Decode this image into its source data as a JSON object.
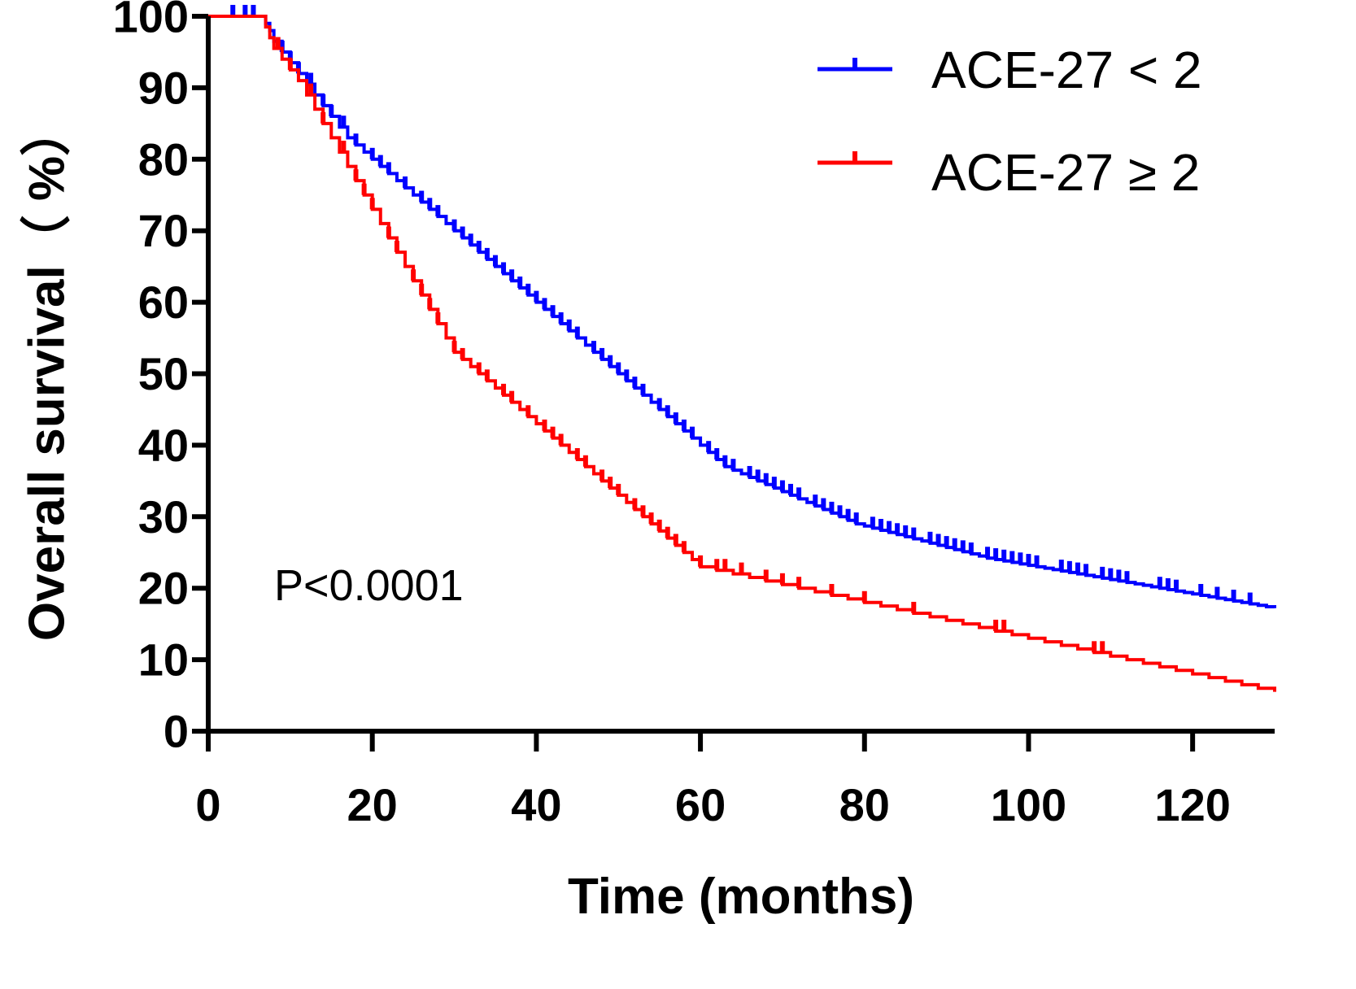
{
  "chart_data": {
    "type": "line",
    "subtype": "kaplan-meier",
    "title": "",
    "xlabel": "Time (months)",
    "ylabel": "Overall survival（ %）",
    "xlim": [
      0,
      130
    ],
    "ylim": [
      0,
      100
    ],
    "xticks": [
      0,
      20,
      40,
      60,
      80,
      100,
      120
    ],
    "yticks": [
      0,
      10,
      20,
      30,
      40,
      50,
      60,
      70,
      80,
      90,
      100
    ],
    "grid": false,
    "legend_position": "top-right",
    "annotation": "P<0.0001",
    "series": [
      {
        "name": "ACE-27 < 2",
        "color": "#0000ff",
        "steps": [
          [
            0,
            100
          ],
          [
            7,
            99
          ],
          [
            7.5,
            98
          ],
          [
            8,
            96.5
          ],
          [
            9,
            95
          ],
          [
            10,
            93.5
          ],
          [
            11,
            92
          ],
          [
            12,
            90.5
          ],
          [
            13,
            89
          ],
          [
            14,
            87.5
          ],
          [
            15,
            86
          ],
          [
            16,
            84.5
          ],
          [
            17,
            83
          ],
          [
            18,
            82
          ],
          [
            19,
            81
          ],
          [
            20,
            80
          ],
          [
            21,
            79
          ],
          [
            22,
            78
          ],
          [
            23,
            77
          ],
          [
            24,
            76
          ],
          [
            25,
            75
          ],
          [
            26,
            74
          ],
          [
            27,
            73
          ],
          [
            28,
            72
          ],
          [
            29,
            71
          ],
          [
            30,
            70
          ],
          [
            31,
            69
          ],
          [
            32,
            68
          ],
          [
            33,
            67
          ],
          [
            34,
            66
          ],
          [
            35,
            65
          ],
          [
            36,
            64
          ],
          [
            37,
            63
          ],
          [
            38,
            62
          ],
          [
            39,
            61
          ],
          [
            40,
            60
          ],
          [
            41,
            59
          ],
          [
            42,
            58
          ],
          [
            43,
            57
          ],
          [
            44,
            56
          ],
          [
            45,
            55
          ],
          [
            46,
            54
          ],
          [
            47,
            53
          ],
          [
            48,
            52
          ],
          [
            49,
            51
          ],
          [
            50,
            50
          ],
          [
            51,
            49
          ],
          [
            52,
            48
          ],
          [
            53,
            47
          ],
          [
            54,
            46
          ],
          [
            55,
            45
          ],
          [
            56,
            44
          ],
          [
            57,
            43
          ],
          [
            58,
            42
          ],
          [
            59,
            41
          ],
          [
            60,
            40
          ],
          [
            61,
            39
          ],
          [
            62,
            38
          ],
          [
            63,
            37
          ],
          [
            64,
            36.5
          ],
          [
            65,
            36
          ],
          [
            66,
            35.5
          ],
          [
            67,
            35
          ],
          [
            68,
            34.5
          ],
          [
            69,
            34
          ],
          [
            70,
            33.5
          ],
          [
            71,
            33
          ],
          [
            72,
            32.5
          ],
          [
            73,
            32
          ],
          [
            74,
            31.5
          ],
          [
            75,
            31
          ],
          [
            76,
            30.5
          ],
          [
            77,
            30
          ],
          [
            78,
            29.5
          ],
          [
            79,
            29
          ],
          [
            80,
            28.7
          ],
          [
            81,
            28.4
          ],
          [
            82,
            28.1
          ],
          [
            83,
            27.8
          ],
          [
            84,
            27.5
          ],
          [
            85,
            27.2
          ],
          [
            86,
            26.9
          ],
          [
            87,
            26.6
          ],
          [
            88,
            26.3
          ],
          [
            89,
            26
          ],
          [
            90,
            25.7
          ],
          [
            91,
            25.4
          ],
          [
            92,
            25.1
          ],
          [
            93,
            24.8
          ],
          [
            94,
            24.5
          ],
          [
            95,
            24.2
          ],
          [
            96,
            24
          ],
          [
            97,
            23.8
          ],
          [
            98,
            23.6
          ],
          [
            99,
            23.4
          ],
          [
            100,
            23.2
          ],
          [
            101,
            23
          ],
          [
            102,
            22.8
          ],
          [
            103,
            22.6
          ],
          [
            104,
            22.4
          ],
          [
            105,
            22.2
          ],
          [
            106,
            22
          ],
          [
            107,
            21.8
          ],
          [
            108,
            21.6
          ],
          [
            109,
            21.4
          ],
          [
            110,
            21.2
          ],
          [
            111,
            21
          ],
          [
            112,
            20.8
          ],
          [
            113,
            20.6
          ],
          [
            114,
            20.4
          ],
          [
            115,
            20.2
          ],
          [
            116,
            20
          ],
          [
            117,
            19.8
          ],
          [
            118,
            19.6
          ],
          [
            119,
            19.4
          ],
          [
            120,
            19.2
          ],
          [
            121,
            19
          ],
          [
            122,
            18.8
          ],
          [
            123,
            18.6
          ],
          [
            124,
            18.4
          ],
          [
            125,
            18.2
          ],
          [
            126,
            18
          ],
          [
            127,
            17.8
          ],
          [
            128,
            17.6
          ],
          [
            129,
            17.4
          ],
          [
            130,
            17.2
          ]
        ],
        "censored_x": [
          3,
          4.5,
          5.5,
          9,
          10,
          11,
          12.5,
          14,
          15,
          16.5,
          18,
          20,
          21,
          22,
          24,
          26,
          27,
          28,
          30,
          31,
          32,
          33,
          34,
          35,
          36,
          37,
          38,
          39,
          40,
          41,
          42,
          43,
          44,
          45,
          47,
          48,
          49,
          50,
          51,
          52,
          53,
          55,
          56,
          57,
          58,
          59,
          61,
          62,
          63,
          64,
          66,
          67,
          68,
          69,
          70,
          71,
          72,
          74,
          75,
          76,
          77,
          78,
          79,
          81,
          82,
          83,
          84,
          85,
          86,
          88,
          89,
          90,
          91,
          92,
          93,
          95,
          96,
          97,
          98,
          99,
          100,
          101,
          104,
          105,
          106,
          107,
          109,
          110,
          111,
          112,
          116,
          117,
          118,
          121,
          123,
          125,
          127
        ]
      },
      {
        "name": "ACE-27 ≥ 2",
        "color": "#ff0000",
        "steps": [
          [
            0,
            100
          ],
          [
            7,
            98.5
          ],
          [
            7.5,
            97
          ],
          [
            8,
            95.5
          ],
          [
            9,
            94
          ],
          [
            10,
            92.5
          ],
          [
            11,
            91
          ],
          [
            12,
            89
          ],
          [
            13,
            87
          ],
          [
            14,
            85
          ],
          [
            15,
            83
          ],
          [
            16,
            81
          ],
          [
            17,
            79
          ],
          [
            18,
            77
          ],
          [
            19,
            75
          ],
          [
            20,
            73
          ],
          [
            21,
            71
          ],
          [
            22,
            69
          ],
          [
            23,
            67
          ],
          [
            24,
            65
          ],
          [
            25,
            63
          ],
          [
            26,
            61
          ],
          [
            27,
            59
          ],
          [
            28,
            57
          ],
          [
            29,
            55
          ],
          [
            30,
            53
          ],
          [
            31,
            52
          ],
          [
            32,
            51
          ],
          [
            33,
            50
          ],
          [
            34,
            49
          ],
          [
            35,
            48
          ],
          [
            36,
            47
          ],
          [
            37,
            46
          ],
          [
            38,
            45
          ],
          [
            39,
            44
          ],
          [
            40,
            43
          ],
          [
            41,
            42
          ],
          [
            42,
            41
          ],
          [
            43,
            40
          ],
          [
            44,
            39
          ],
          [
            45,
            38
          ],
          [
            46,
            37
          ],
          [
            47,
            36
          ],
          [
            48,
            35
          ],
          [
            49,
            34
          ],
          [
            50,
            33
          ],
          [
            51,
            32
          ],
          [
            52,
            31
          ],
          [
            53,
            30
          ],
          [
            54,
            29
          ],
          [
            55,
            28
          ],
          [
            56,
            27
          ],
          [
            57,
            26
          ],
          [
            58,
            25
          ],
          [
            59,
            24
          ],
          [
            60,
            23
          ],
          [
            62,
            22.5
          ],
          [
            64,
            22
          ],
          [
            66,
            21.5
          ],
          [
            68,
            21
          ],
          [
            70,
            20.5
          ],
          [
            72,
            20
          ],
          [
            74,
            19.5
          ],
          [
            76,
            19
          ],
          [
            78,
            18.5
          ],
          [
            80,
            18
          ],
          [
            82,
            17.5
          ],
          [
            84,
            17
          ],
          [
            86,
            16.5
          ],
          [
            88,
            16
          ],
          [
            90,
            15.5
          ],
          [
            92,
            15
          ],
          [
            94,
            14.5
          ],
          [
            96,
            14
          ],
          [
            98,
            13.5
          ],
          [
            100,
            13
          ],
          [
            102,
            12.5
          ],
          [
            104,
            12
          ],
          [
            106,
            11.5
          ],
          [
            108,
            11
          ],
          [
            110,
            10.5
          ],
          [
            112,
            10
          ],
          [
            114,
            9.5
          ],
          [
            116,
            9
          ],
          [
            118,
            8.5
          ],
          [
            120,
            8
          ],
          [
            122,
            7.5
          ],
          [
            124,
            7
          ],
          [
            126,
            6.5
          ],
          [
            128,
            6
          ],
          [
            130,
            5.5
          ]
        ],
        "censored_x": [
          8.5,
          10,
          12.5,
          14,
          16.5,
          18,
          19,
          20,
          22,
          23,
          25,
          26,
          27,
          28,
          30,
          31,
          33,
          34,
          36,
          37,
          39,
          41,
          42,
          43,
          45,
          46,
          48,
          49,
          50,
          52,
          53,
          54,
          55,
          56,
          57,
          58,
          60,
          62,
          63,
          65,
          68,
          70,
          72,
          76,
          80,
          86,
          96,
          97,
          108,
          109
        ]
      }
    ]
  }
}
